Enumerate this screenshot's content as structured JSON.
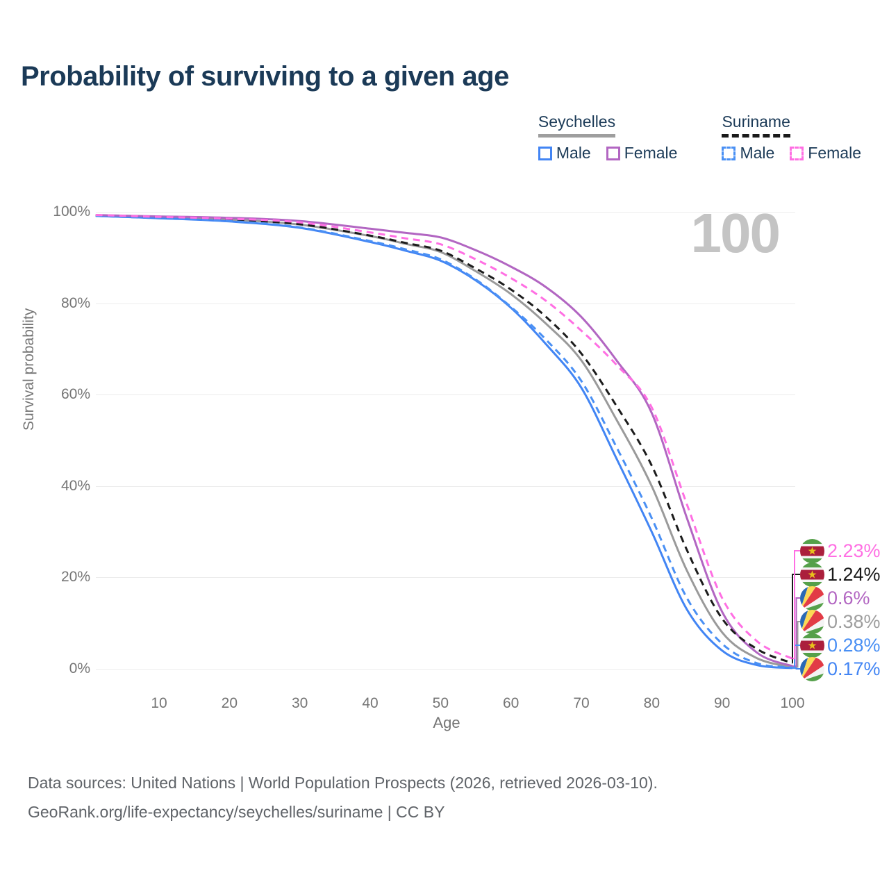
{
  "page": {
    "title": "Probability of surviving to a given age",
    "watermark": "100"
  },
  "legend": {
    "groups": [
      {
        "label": "Seychelles",
        "line_style": "solid",
        "line_color": "#9e9e9e",
        "items": [
          {
            "label": "Male",
            "color": "#4285f4",
            "dashed": false
          },
          {
            "label": "Female",
            "color": "#b266c2",
            "dashed": false
          }
        ]
      },
      {
        "label": "Suriname",
        "line_style": "dashed",
        "line_color": "#1a1a1a",
        "items": [
          {
            "label": "Male",
            "color": "#4a90f4",
            "dashed": true
          },
          {
            "label": "Female",
            "color": "#ff6fe3",
            "dashed": true
          }
        ]
      }
    ]
  },
  "chart_data": {
    "type": "line",
    "title": "Probability of surviving to a given age",
    "xlabel": "Age",
    "ylabel": "Survival probability",
    "xlim": [
      0,
      100
    ],
    "ylim": [
      0,
      100
    ],
    "x_ticks": [
      10,
      20,
      30,
      40,
      50,
      60,
      70,
      80,
      90,
      100
    ],
    "y_ticks": [
      "0%",
      "20%",
      "40%",
      "60%",
      "80%",
      "100%"
    ],
    "grid": "horizontal",
    "legend_position": "top-right",
    "watermark": "100",
    "x": [
      1,
      10,
      20,
      30,
      40,
      45,
      50,
      55,
      60,
      65,
      70,
      75,
      80,
      85,
      90,
      95,
      100
    ],
    "series": [
      {
        "name": "Seychelles",
        "country": "seychelles",
        "sex": "both",
        "color": "#9a9a9a",
        "dashed": false,
        "values": [
          99.2,
          98.8,
          98.3,
          97.2,
          94.7,
          93.0,
          91.2,
          87.0,
          82.0,
          75.5,
          67.5,
          54.5,
          40.0,
          21.5,
          8.0,
          2.3,
          0.38
        ],
        "end_label": {
          "row": 3,
          "text": "0.38%",
          "color": "#9e9e9e",
          "flag": "seychelles"
        }
      },
      {
        "name": "Seychelles Male",
        "country": "seychelles",
        "sex": "male",
        "color": "#4285f4",
        "dashed": false,
        "values": [
          99.1,
          98.6,
          97.9,
          96.5,
          93.4,
          91.5,
          89.3,
          85.0,
          79.0,
          71.0,
          61.5,
          46.0,
          30.0,
          13.0,
          4.0,
          0.8,
          0.17
        ],
        "end_label": {
          "row": 5,
          "text": "0.17%",
          "color": "#4285f4",
          "flag": "seychelles"
        }
      },
      {
        "name": "Seychelles Female",
        "country": "seychelles",
        "sex": "female",
        "color": "#b266c2",
        "dashed": false,
        "values": [
          99.3,
          99.0,
          98.7,
          98.0,
          96.3,
          95.4,
          94.4,
          91.6,
          88.0,
          83.5,
          77.0,
          67.5,
          56.0,
          33.0,
          12.5,
          3.5,
          0.6
        ],
        "end_label": {
          "row": 2,
          "text": "0.6%",
          "color": "#b266c2",
          "flag": "seychelles"
        }
      },
      {
        "name": "Suriname",
        "country": "suriname",
        "sex": "both",
        "color": "#1c1c1c",
        "dashed": true,
        "values": [
          99.2,
          98.8,
          98.3,
          97.3,
          94.8,
          93.2,
          91.5,
          87.6,
          83.0,
          77.0,
          69.0,
          57.5,
          44.5,
          26.0,
          11.0,
          4.3,
          1.24
        ],
        "end_label": {
          "row": 1,
          "text": "1.24%",
          "color": "#1a1a1a",
          "flag": "suriname"
        }
      },
      {
        "name": "Suriname Male",
        "country": "suriname",
        "sex": "male",
        "color": "#4a90f4",
        "dashed": true,
        "values": [
          99.1,
          98.6,
          98.0,
          96.6,
          93.6,
          91.8,
          89.6,
          85.2,
          79.2,
          72.0,
          63.0,
          48.5,
          33.0,
          15.5,
          5.5,
          1.2,
          0.28
        ],
        "end_label": {
          "row": 4,
          "text": "0.28%",
          "color": "#4a90f4",
          "flag": "suriname"
        }
      },
      {
        "name": "Suriname Female",
        "country": "suriname",
        "sex": "female",
        "color": "#ff6fe3",
        "dashed": true,
        "values": [
          99.3,
          98.9,
          98.5,
          97.7,
          95.5,
          94.2,
          92.9,
          89.6,
          85.5,
          80.5,
          74.0,
          66.5,
          57.2,
          36.0,
          15.5,
          6.0,
          2.23
        ],
        "end_label": {
          "row": 0,
          "text": "2.23%",
          "color": "#ff6fe3",
          "flag": "suriname"
        }
      }
    ]
  },
  "flags": {
    "suriname": {
      "green": "#55a04a",
      "white": "#f4f4f4",
      "red": "#ab1f3c",
      "star": "#e8c11c"
    },
    "seychelles": {
      "blue": "#2a69b5",
      "yellow": "#fcd955",
      "red": "#e23b46",
      "white": "#f4f4f4",
      "green": "#55a04a"
    }
  },
  "footer": {
    "line1": "Data sources: United Nations | World Population Prospects (2026, retrieved 2026-03-10).",
    "line2": "GeoRank.org/life-expectancy/seychelles/suriname | CC BY"
  }
}
